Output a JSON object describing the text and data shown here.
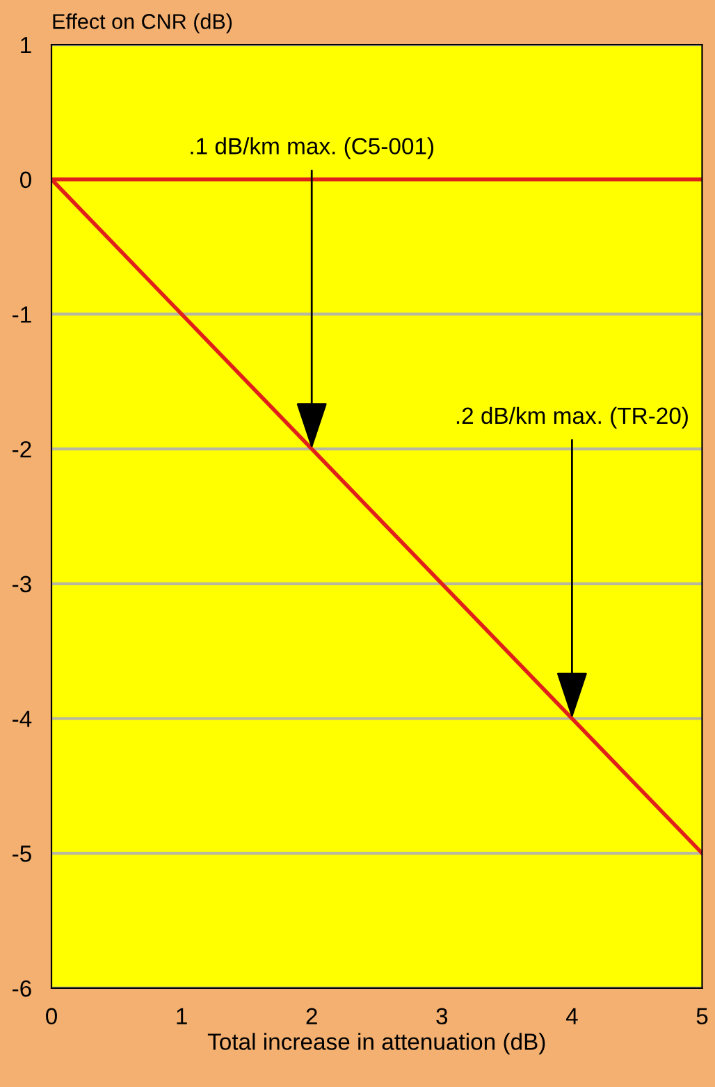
{
  "chart_data": {
    "type": "line",
    "ylabel": "Effect on CNR (dB)",
    "xlabel": "Total increase in attenuation (dB)",
    "x": [
      0,
      5
    ],
    "series": [
      {
        "color": "#e0201a",
        "values": [
          0,
          -5
        ]
      }
    ],
    "xlim": [
      0,
      5
    ],
    "xticks": [
      0,
      1,
      2,
      3,
      4,
      5
    ],
    "ylim": [
      -6,
      1
    ],
    "yticks": [
      -6,
      -5,
      -4,
      -3,
      -2,
      -1,
      0,
      1
    ],
    "grid": "y",
    "marker": "none",
    "line_style": "solid",
    "ref_lines": [
      {
        "axis": "y",
        "value": 0,
        "color": "#e0201a"
      }
    ],
    "annotations": [
      {
        "text": ".1 dB/km max. (C5-001)",
        "x": 2,
        "y": -2
      },
      {
        "text": ".2 dB/km max. (TR-20)",
        "x": 4,
        "y": -4
      }
    ]
  }
}
